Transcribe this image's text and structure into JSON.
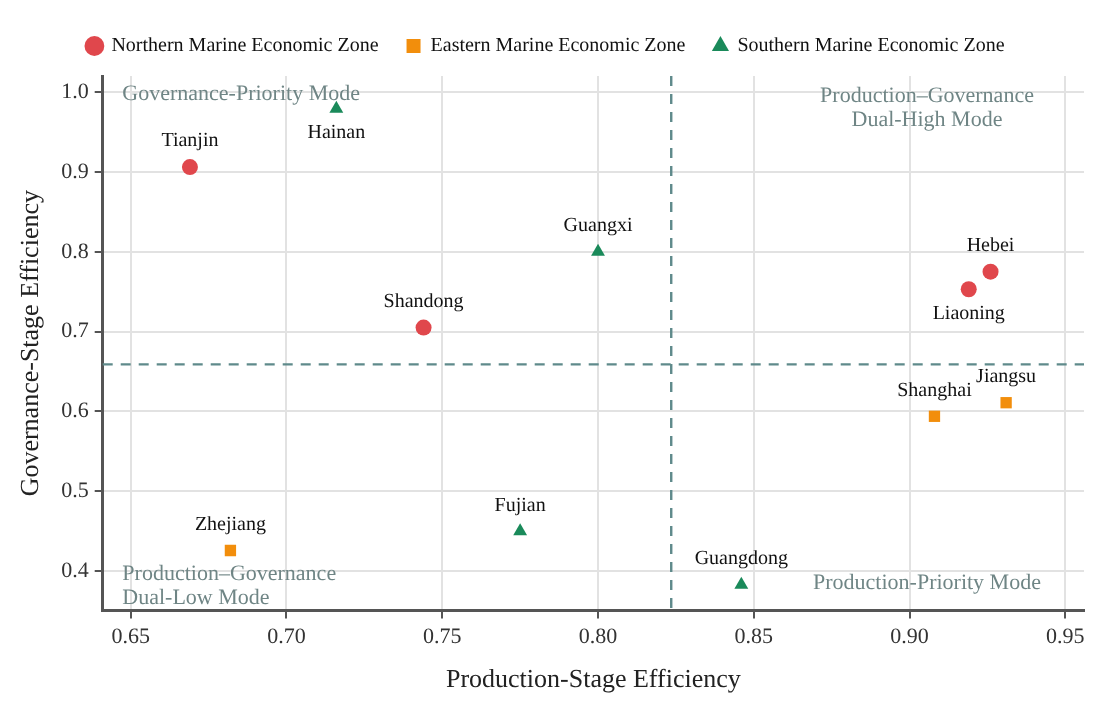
{
  "chart_data": {
    "type": "scatter",
    "xlabel": "Production-Stage Efficiency",
    "ylabel": "Governance-Stage Efficiency",
    "xlim": [
      0.641,
      0.956
    ],
    "ylim": [
      0.351,
      1.02
    ],
    "xticks": [
      {
        "value": 0.65,
        "label": "0.65"
      },
      {
        "value": 0.7,
        "label": "0.70"
      },
      {
        "value": 0.75,
        "label": "0.75"
      },
      {
        "value": 0.8,
        "label": "0.80"
      },
      {
        "value": 0.85,
        "label": "0.85"
      },
      {
        "value": 0.9,
        "label": "0.90"
      },
      {
        "value": 0.95,
        "label": "0.95"
      }
    ],
    "yticks": [
      {
        "value": 0.4,
        "label": "0.4"
      },
      {
        "value": 0.5,
        "label": "0.5"
      },
      {
        "value": 0.6,
        "label": "0.6"
      },
      {
        "value": 0.7,
        "label": "0.7"
      },
      {
        "value": 0.8,
        "label": "0.8"
      },
      {
        "value": 0.9,
        "label": "0.9"
      },
      {
        "value": 1.0,
        "label": "1.0"
      }
    ],
    "grid": true,
    "legend": "top",
    "series": [
      {
        "name": "Northern Marine Economic Zone",
        "color": "#e0474c",
        "marker": "circle",
        "x": [
          0.669,
          0.744,
          0.926,
          0.919
        ],
        "values": [
          0.906,
          0.705,
          0.775,
          0.753
        ]
      },
      {
        "name": "Eastern Marine Economic Zone",
        "color": "#f28e0c",
        "marker": "square",
        "x": [
          0.682,
          0.931,
          0.908
        ],
        "values": [
          0.426,
          0.611,
          0.594
        ]
      },
      {
        "name": "Southern Marine Economic Zone",
        "color": "#1a8a5a",
        "marker": "triangle",
        "x": [
          0.716,
          0.8,
          0.775,
          0.846
        ],
        "values": [
          0.979,
          0.8,
          0.45,
          0.383
        ]
      }
    ],
    "ref_lines": [
      {
        "axis": "x",
        "value": 0.8235,
        "color": "#5f8a8b",
        "line_style": "dashed"
      },
      {
        "axis": "y",
        "value": 0.659,
        "color": "#5f8a8b",
        "line_style": "dashed"
      }
    ],
    "annotations": [
      {
        "text": "Tianjin",
        "x": 0.669,
        "y": 0.906
      },
      {
        "text": "Shandong",
        "x": 0.744,
        "y": 0.705
      },
      {
        "text": "Hebei",
        "x": 0.926,
        "y": 0.775
      },
      {
        "text": "Liaoning",
        "x": 0.919,
        "y": 0.753
      },
      {
        "text": "Zhejiang",
        "x": 0.682,
        "y": 0.426
      },
      {
        "text": "Jiangsu",
        "x": 0.931,
        "y": 0.611
      },
      {
        "text": "Shanghai",
        "x": 0.908,
        "y": 0.594
      },
      {
        "text": "Hainan",
        "x": 0.716,
        "y": 0.979
      },
      {
        "text": "Guangxi",
        "x": 0.8,
        "y": 0.8
      },
      {
        "text": "Fujian",
        "x": 0.775,
        "y": 0.45
      },
      {
        "text": "Guangdong",
        "x": 0.846,
        "y": 0.383
      },
      "Governance-Priority Mode",
      "Production–Governance\nDual-High Mode",
      "Production–Governance\nDual-Low Mode",
      "Production-Priority Mode"
    ]
  }
}
